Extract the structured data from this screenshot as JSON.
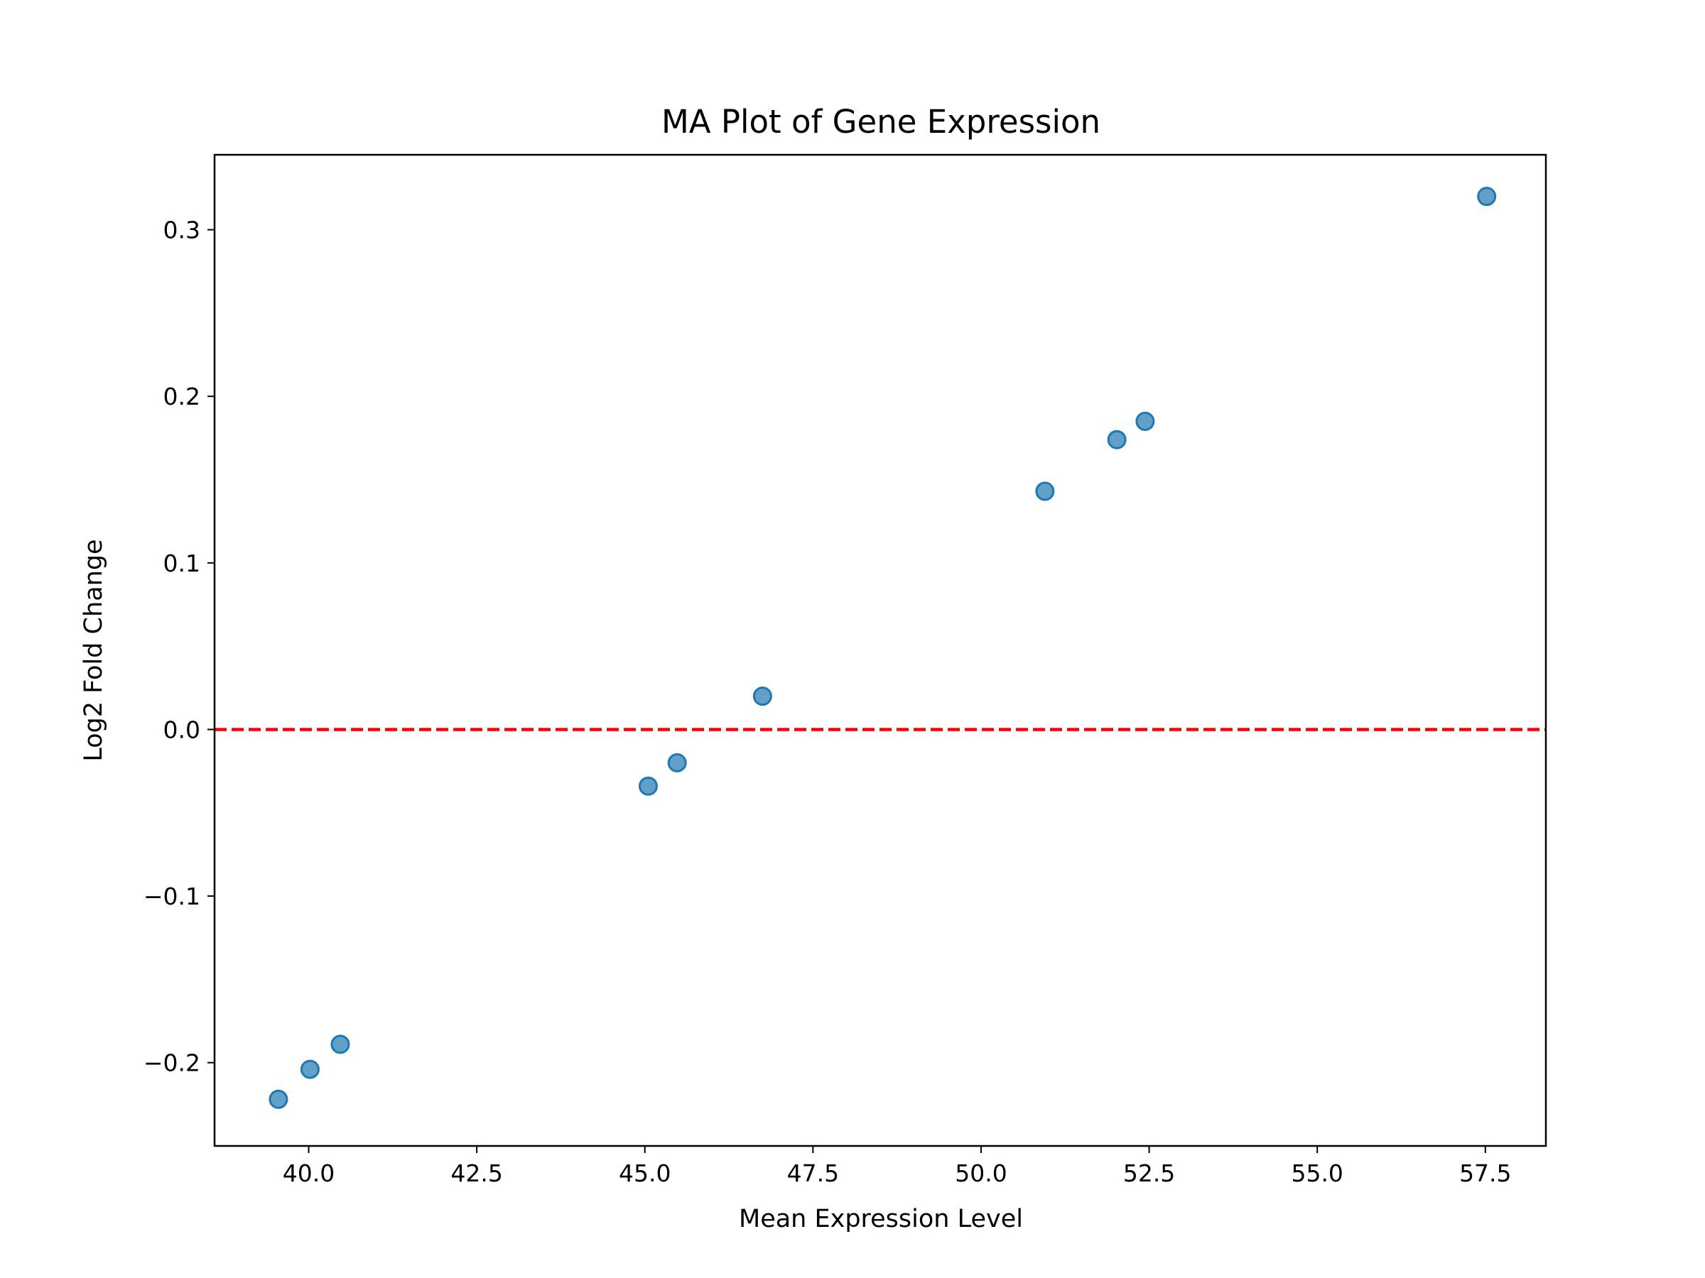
{
  "chart_data": {
    "type": "scatter",
    "title": "MA Plot of Gene Expression",
    "xlabel": "Mean Expression Level",
    "ylabel": "Log2 Fold Change",
    "xlim": [
      38.6,
      58.4
    ],
    "ylim": [
      -0.25,
      0.345
    ],
    "xticks": [
      40.0,
      42.5,
      45.0,
      47.5,
      50.0,
      52.5,
      55.0,
      57.5
    ],
    "xtick_labels": [
      "40.0",
      "42.5",
      "45.0",
      "47.5",
      "50.0",
      "52.5",
      "55.0",
      "57.5"
    ],
    "yticks": [
      -0.2,
      -0.1,
      0.0,
      0.1,
      0.2,
      0.3
    ],
    "ytick_labels": [
      "−0.2",
      "−0.1",
      "0.0",
      "0.1",
      "0.2",
      "0.3"
    ],
    "grid": false,
    "reference_line": {
      "y": 0.0,
      "style": "dashed",
      "color": "#ff0000"
    },
    "point_color": "#1f77b4",
    "points": [
      {
        "x": 39.55,
        "y": -0.222
      },
      {
        "x": 40.02,
        "y": -0.204
      },
      {
        "x": 40.47,
        "y": -0.189
      },
      {
        "x": 45.05,
        "y": -0.034
      },
      {
        "x": 45.48,
        "y": -0.02
      },
      {
        "x": 46.75,
        "y": 0.02
      },
      {
        "x": 50.95,
        "y": 0.143
      },
      {
        "x": 52.02,
        "y": 0.174
      },
      {
        "x": 52.44,
        "y": 0.185
      },
      {
        "x": 57.52,
        "y": 0.32
      }
    ]
  }
}
